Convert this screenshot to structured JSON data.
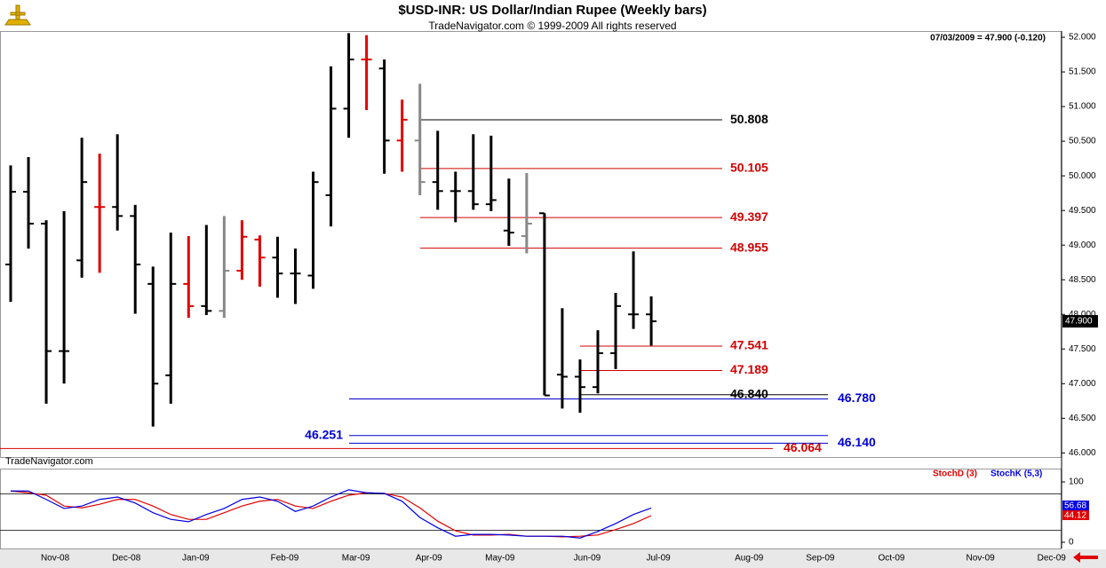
{
  "chart_data": [
    {
      "type": "ohlc",
      "title": "$USD-INR:  US Dollar/Indian Rupee  (Weekly bars)",
      "subtitle": "TradeNavigator.com © 1999-2009 All rights reserved",
      "info": "07/03/2009 = 47.900 (-0.120)",
      "watermark": "TradeNavigator.com",
      "last_label": "47.900",
      "x_labels": [
        "Nov-08",
        "Dec-08",
        "Jan-09",
        "Feb-09",
        "Mar-09",
        "Apr-09",
        "May-09",
        "Jun-09",
        "Jul-09",
        "Aug-09",
        "Sep-09",
        "Oct-09",
        "Nov-09",
        "Dec-09"
      ],
      "open": [
        48.72,
        49.77,
        49.31,
        47.47,
        48.78,
        49.55,
        49.55,
        49.42,
        48.44,
        47.12,
        48.44,
        48.12,
        48.05,
        48.63,
        49.08,
        48.82,
        48.59,
        48.56,
        49.72,
        50.97,
        51.68,
        51.55,
        50.51,
        50.51,
        49.91,
        49.78,
        49.78,
        49.59,
        49.21,
        49.13,
        49.46,
        47.13,
        47.1,
        46.95,
        47.44,
        48.0,
        48.0
      ],
      "high": [
        50.15,
        50.27,
        49.36,
        49.49,
        50.55,
        50.32,
        50.6,
        49.58,
        48.69,
        49.18,
        49.13,
        49.29,
        49.42,
        49.36,
        49.14,
        49.12,
        48.95,
        50.06,
        51.58,
        52.06,
        52.03,
        51.68,
        51.1,
        51.33,
        50.65,
        50.06,
        50.6,
        50.58,
        49.96,
        50.04,
        49.46,
        48.09,
        47.35,
        47.77,
        48.31,
        48.91,
        48.26
      ],
      "low": [
        48.18,
        48.95,
        46.71,
        47.0,
        48.53,
        48.6,
        49.21,
        48.01,
        46.38,
        46.71,
        47.95,
        47.99,
        47.95,
        48.5,
        48.4,
        48.24,
        48.15,
        48.37,
        49.27,
        50.55,
        50.95,
        50.03,
        50.06,
        49.72,
        49.51,
        49.33,
        49.51,
        49.49,
        48.99,
        48.88,
        46.83,
        46.64,
        46.58,
        46.86,
        47.21,
        47.79,
        47.55
      ],
      "close": [
        49.77,
        49.31,
        47.47,
        47.47,
        49.91,
        49.55,
        49.42,
        48.72,
        47.0,
        48.44,
        48.12,
        48.05,
        48.63,
        49.12,
        48.82,
        48.59,
        48.59,
        49.91,
        50.97,
        51.68,
        51.68,
        50.51,
        50.81,
        49.91,
        49.78,
        49.78,
        49.59,
        49.65,
        49.18,
        49.31,
        46.83,
        47.1,
        46.95,
        47.44,
        48.12,
        48.0,
        47.9
      ],
      "colors": [
        "#000",
        "#000",
        "#000",
        "#000",
        "#000",
        "#e00000",
        "#000",
        "#000",
        "#000",
        "#000",
        "#e00000",
        "#000",
        "#888",
        "#e00000",
        "#e00000",
        "#000",
        "#000",
        "#000",
        "#000",
        "#000",
        "#e00000",
        "#000",
        "#e00000",
        "#888",
        "#000",
        "#000",
        "#000",
        "#000",
        "#000",
        "#888",
        "#000",
        "#000",
        "#000",
        "#000",
        "#000",
        "#000",
        "#000"
      ],
      "levels": [
        {
          "value": 50.808,
          "label": "50.808",
          "color": "#000000"
        },
        {
          "value": 50.105,
          "label": "50.105",
          "color": "#d00000"
        },
        {
          "value": 49.397,
          "label": "49.397",
          "color": "#d00000"
        },
        {
          "value": 48.955,
          "label": "48.955",
          "color": "#d00000"
        },
        {
          "value": 47.541,
          "label": "47.541",
          "color": "#d00000"
        },
        {
          "value": 47.189,
          "label": "47.189",
          "color": "#d00000"
        },
        {
          "value": 46.84,
          "label": "46.840",
          "color": "#000000"
        },
        {
          "value": 46.78,
          "label": "46.780",
          "color": "#0000d0"
        },
        {
          "value": 46.251,
          "label": "46.251",
          "color": "#0000d0"
        },
        {
          "value": 46.14,
          "label": "46.140",
          "color": "#0000d0"
        },
        {
          "value": 46.064,
          "label": "46.064",
          "color": "#d00000"
        }
      ],
      "ylim": [
        45.94,
        52.09
      ],
      "yticks": [
        {
          "value": 46,
          "label": "46.000"
        },
        {
          "value": 46.5,
          "label": "46.500"
        },
        {
          "value": 47,
          "label": "47.000"
        },
        {
          "value": 47.5,
          "label": "47.500"
        },
        {
          "value": 48,
          "label": "48.000"
        },
        {
          "value": 48.5,
          "label": "48.500"
        },
        {
          "value": 49,
          "label": "49.000"
        },
        {
          "value": 49.5,
          "label": "49.500"
        },
        {
          "value": 50,
          "label": "50.000"
        },
        {
          "value": 50.5,
          "label": "50.500"
        },
        {
          "value": 51,
          "label": "51.000"
        },
        {
          "value": 51.5,
          "label": "51.500"
        },
        {
          "value": 52,
          "label": "52.000"
        }
      ]
    },
    {
      "type": "line",
      "series": [
        {
          "name": "StochD (3)",
          "color": "#e00000",
          "values": [
            85,
            82,
            78,
            60,
            57,
            63,
            71,
            71,
            60,
            46,
            38,
            38,
            49,
            60,
            68,
            71,
            60,
            56,
            68,
            78,
            82,
            81,
            75,
            57,
            35,
            19,
            12,
            12,
            13,
            10,
            10,
            9,
            10,
            12,
            21,
            31,
            44.12
          ]
        },
        {
          "name": "StochK (5,3)",
          "color": "#0000e0",
          "values": [
            85,
            85,
            71,
            56,
            60,
            71,
            75,
            65,
            49,
            38,
            34,
            46,
            56,
            71,
            75,
            68,
            51,
            60,
            75,
            87,
            82,
            81,
            68,
            41,
            24,
            10,
            13,
            13,
            12,
            10,
            10,
            10,
            7,
            18,
            31,
            46,
            56.68
          ]
        }
      ],
      "levels": [
        80,
        20
      ],
      "ylim": [
        -10.3,
        122.1
      ],
      "yticks": [
        0,
        100
      ]
    }
  ]
}
